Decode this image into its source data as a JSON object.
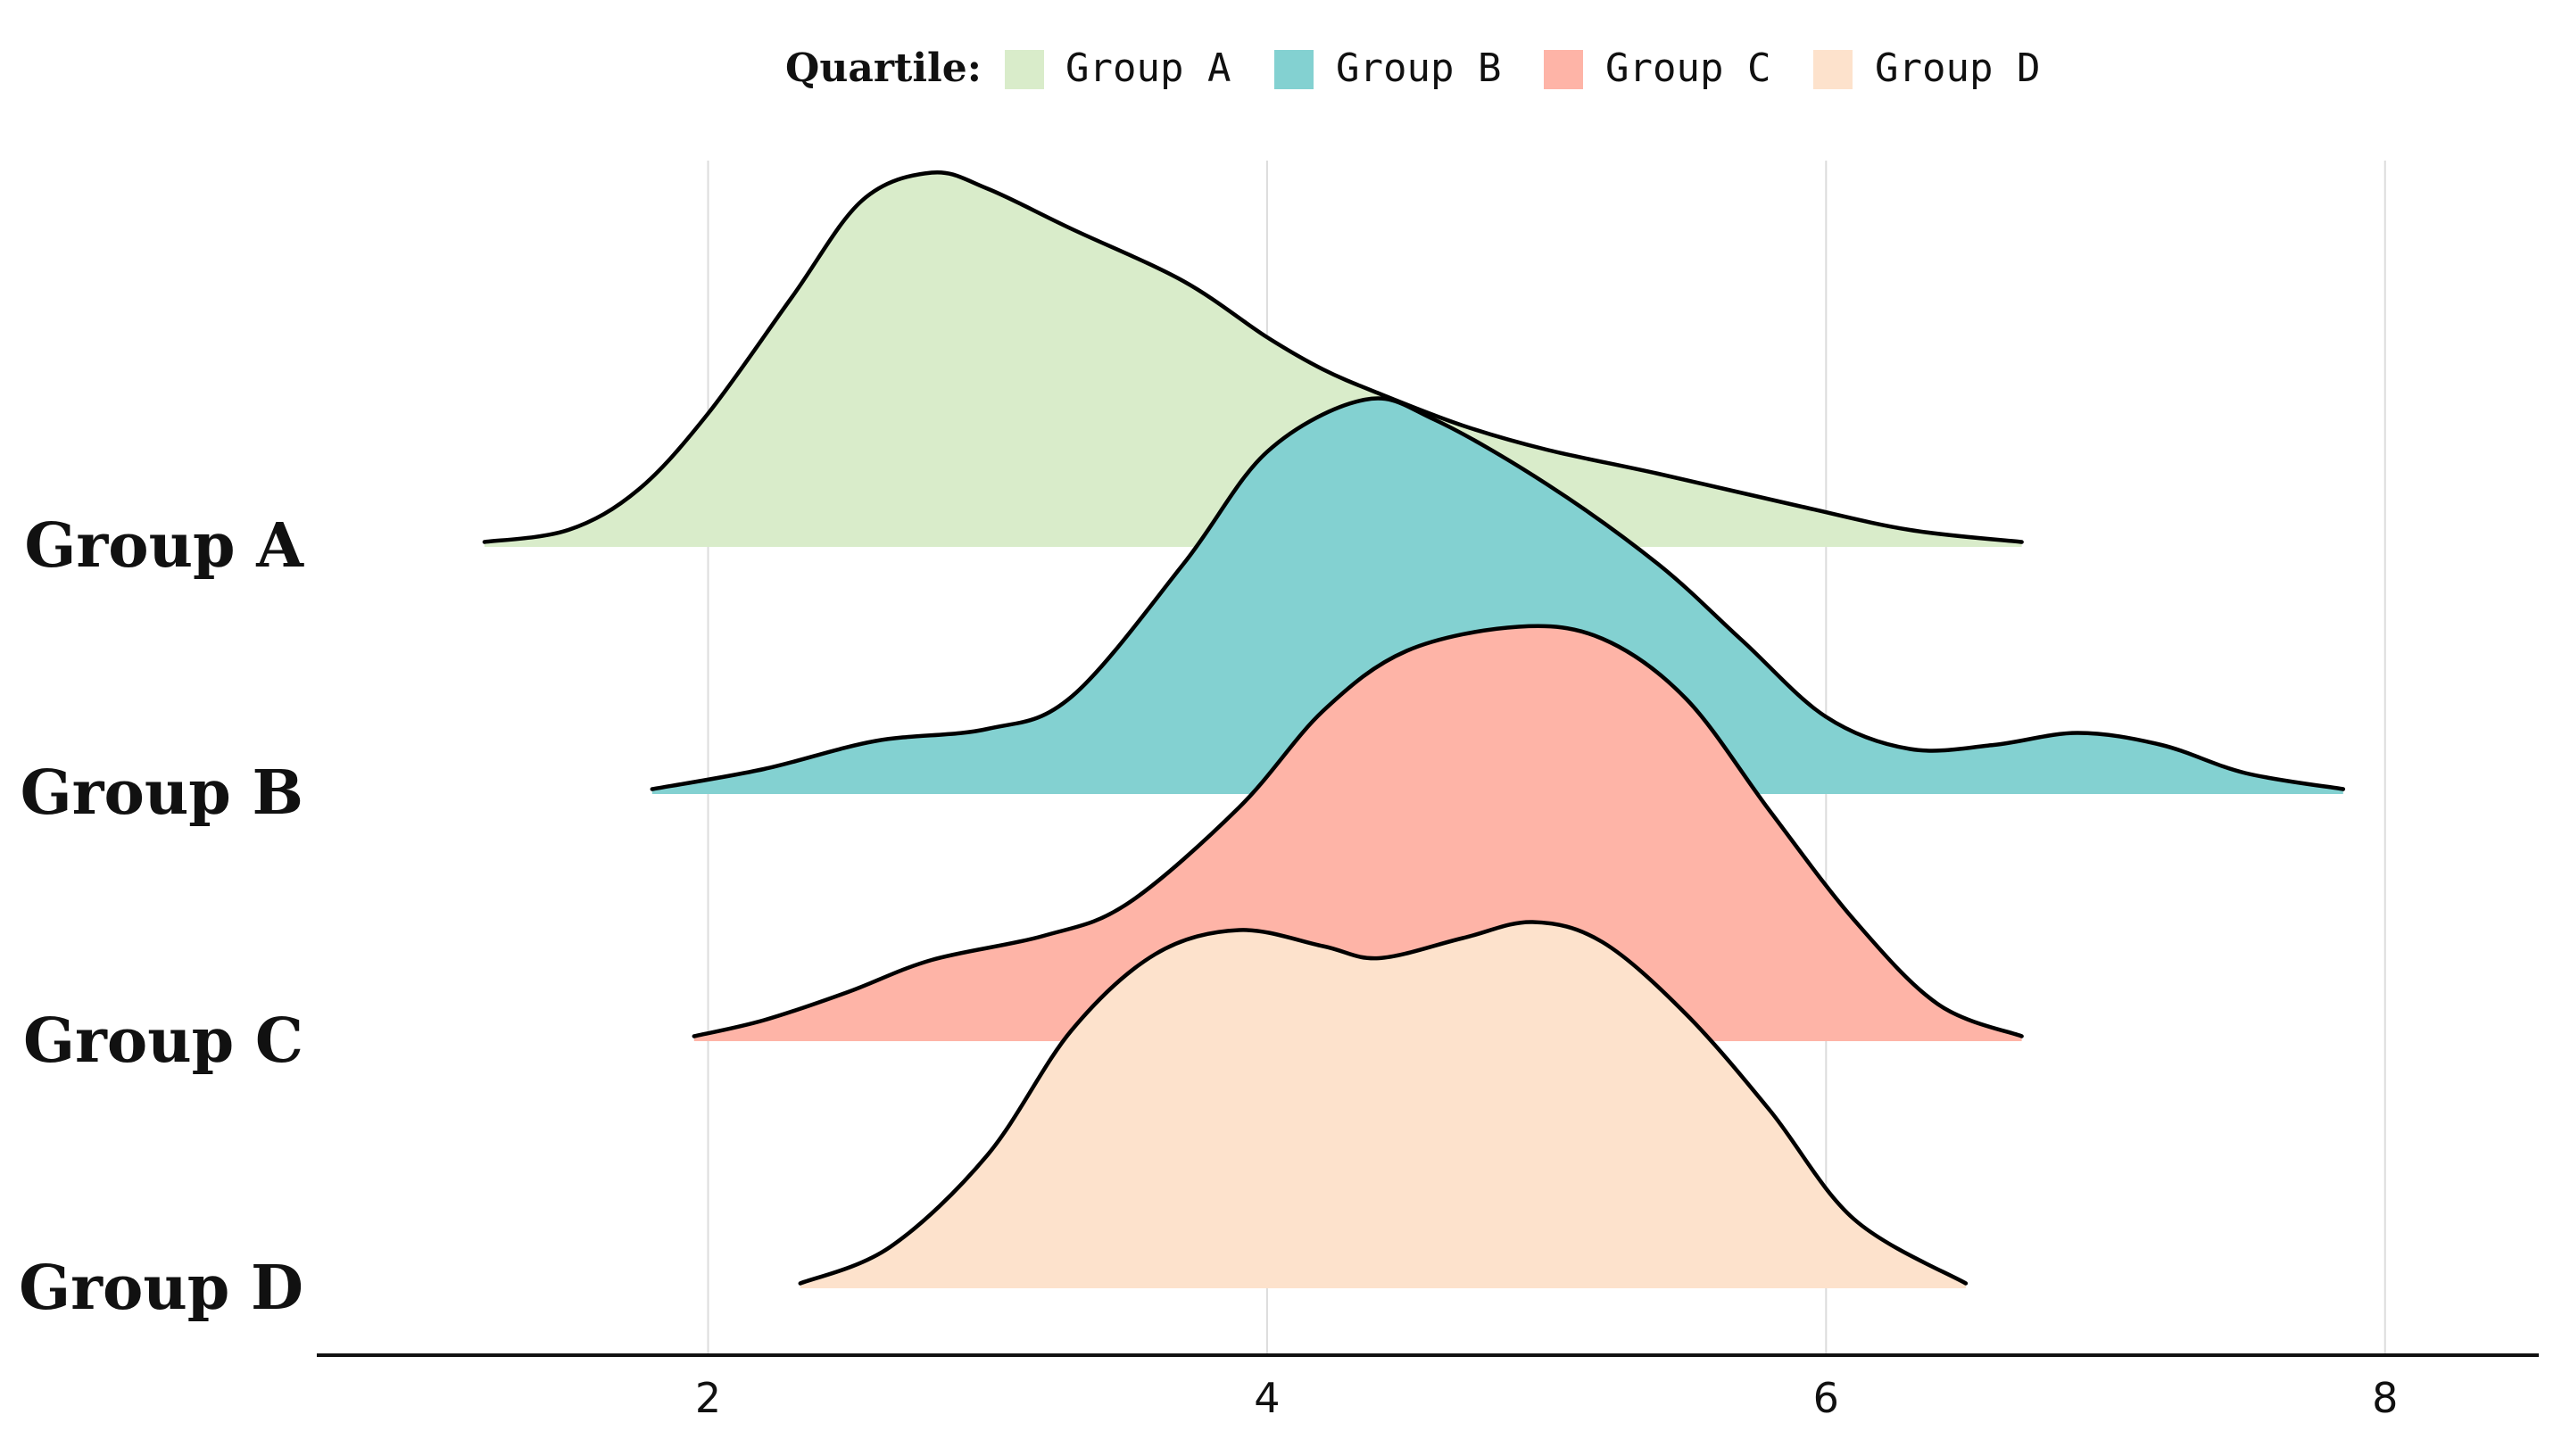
{
  "chart_data": {
    "type": "ridgeline",
    "legend": {
      "title": "Quartile:",
      "placement": "top-center",
      "entries": [
        {
          "label": "Group A",
          "color": "#d9ecca"
        },
        {
          "label": "Group B",
          "color": "#83d1d1"
        },
        {
          "label": "Group C",
          "color": "#feb4a7"
        },
        {
          "label": "Group D",
          "color": "#fde2cc"
        }
      ]
    },
    "x_axis": {
      "range": [
        0.6,
        8.55
      ],
      "ticks": [
        2,
        4,
        6,
        8
      ],
      "tick_labels": [
        "2",
        "4",
        "6",
        "8"
      ],
      "grid": true
    },
    "groups": [
      {
        "name": "Group A",
        "color": "#d9ecca",
        "density": [
          [
            1.2,
            0.01
          ],
          [
            1.5,
            0.04
          ],
          [
            1.75,
            0.14
          ],
          [
            2.0,
            0.33
          ],
          [
            2.3,
            0.62
          ],
          [
            2.55,
            0.86
          ],
          [
            2.8,
            0.93
          ],
          [
            3.0,
            0.89
          ],
          [
            3.3,
            0.79
          ],
          [
            3.7,
            0.66
          ],
          [
            4.0,
            0.52
          ],
          [
            4.2,
            0.44
          ],
          [
            4.4,
            0.38
          ],
          [
            4.7,
            0.3
          ],
          [
            5.0,
            0.24
          ],
          [
            5.4,
            0.18
          ],
          [
            5.9,
            0.1
          ],
          [
            6.3,
            0.04
          ],
          [
            6.7,
            0.01
          ]
        ]
      },
      {
        "name": "Group B",
        "color": "#83d1d1",
        "density": [
          [
            1.8,
            0.01
          ],
          [
            2.2,
            0.06
          ],
          [
            2.6,
            0.13
          ],
          [
            3.0,
            0.16
          ],
          [
            3.3,
            0.24
          ],
          [
            3.7,
            0.57
          ],
          [
            4.0,
            0.85
          ],
          [
            4.35,
            0.98
          ],
          [
            4.6,
            0.93
          ],
          [
            5.0,
            0.77
          ],
          [
            5.4,
            0.57
          ],
          [
            5.7,
            0.38
          ],
          [
            6.0,
            0.19
          ],
          [
            6.3,
            0.11
          ],
          [
            6.6,
            0.12
          ],
          [
            6.9,
            0.15
          ],
          [
            7.2,
            0.12
          ],
          [
            7.5,
            0.05
          ],
          [
            7.85,
            0.01
          ]
        ]
      },
      {
        "name": "Group C",
        "color": "#feb4a7",
        "density": [
          [
            1.95,
            0.01
          ],
          [
            2.2,
            0.05
          ],
          [
            2.5,
            0.12
          ],
          [
            2.8,
            0.2
          ],
          [
            3.2,
            0.26
          ],
          [
            3.5,
            0.34
          ],
          [
            3.9,
            0.58
          ],
          [
            4.2,
            0.82
          ],
          [
            4.5,
            0.97
          ],
          [
            4.9,
            1.03
          ],
          [
            5.2,
            1.0
          ],
          [
            5.5,
            0.85
          ],
          [
            5.8,
            0.57
          ],
          [
            6.1,
            0.3
          ],
          [
            6.4,
            0.09
          ],
          [
            6.7,
            0.01
          ]
        ]
      },
      {
        "name": "Group D",
        "color": "#fde2cc",
        "density": [
          [
            2.33,
            0.01
          ],
          [
            2.65,
            0.1
          ],
          [
            3.0,
            0.33
          ],
          [
            3.3,
            0.64
          ],
          [
            3.6,
            0.83
          ],
          [
            3.9,
            0.89
          ],
          [
            4.2,
            0.85
          ],
          [
            4.4,
            0.82
          ],
          [
            4.7,
            0.87
          ],
          [
            4.95,
            0.91
          ],
          [
            5.2,
            0.86
          ],
          [
            5.5,
            0.68
          ],
          [
            5.8,
            0.44
          ],
          [
            6.1,
            0.17
          ],
          [
            6.5,
            0.01
          ]
        ]
      }
    ]
  }
}
